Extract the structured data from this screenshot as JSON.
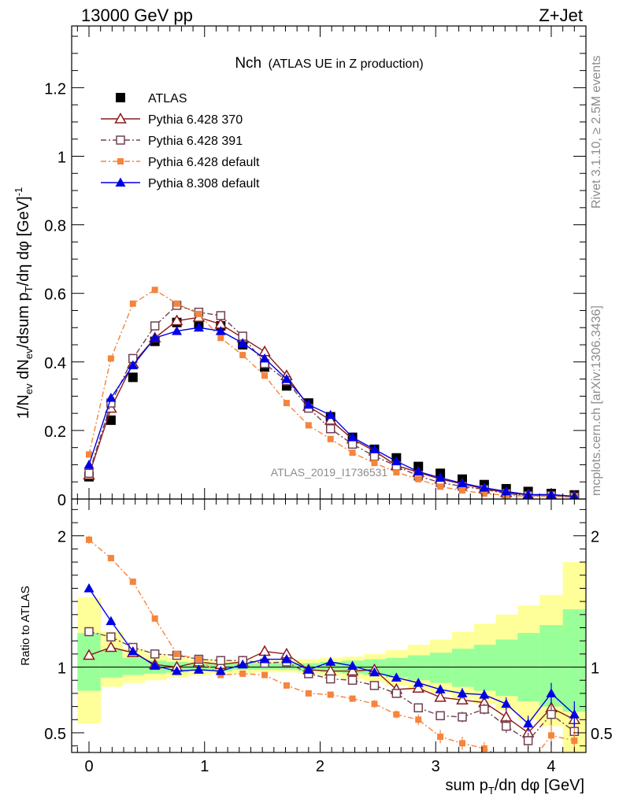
{
  "header": {
    "energy_label": "13000 GeV pp",
    "process_label": "Z+Jet"
  },
  "side_text": {
    "rivet": "Rivet 3.1.10, ≥ 2.5M events",
    "mcplots": "mcplots.cern.ch [arXiv:1306.3436]"
  },
  "chart_data": [
    {
      "type": "line",
      "panel": "main",
      "title_main": "Nch",
      "title_sub": "(ATLAS UE in Z production)",
      "ylabel": "1/N_ev dN_ev/dsum p_T/dη dφ [GeV]^-1",
      "watermark": "ATLAS_2019_I1736531",
      "legend_position": "top-left",
      "xlim": [
        -0.15,
        4.3
      ],
      "ylim": [
        0,
        1.38
      ],
      "y_ticks": [
        0,
        0.2,
        0.4,
        0.6,
        0.8,
        1,
        1.2
      ],
      "y_tick_labels": [
        "0",
        "0.2",
        "0.4",
        "0.6",
        "0.8",
        "1",
        "1.2"
      ],
      "x": [
        0.0,
        0.19,
        0.38,
        0.57,
        0.76,
        0.95,
        1.14,
        1.33,
        1.52,
        1.71,
        1.9,
        2.09,
        2.28,
        2.47,
        2.66,
        2.85,
        3.04,
        3.23,
        3.42,
        3.61,
        3.8,
        4.0,
        4.2
      ],
      "series": [
        {
          "name": "ATLAS",
          "color": "#000000",
          "style": "points",
          "marker": "square-filled",
          "values": [
            0.065,
            0.23,
            0.355,
            0.46,
            0.515,
            0.51,
            0.505,
            0.45,
            0.385,
            0.33,
            0.28,
            0.24,
            0.18,
            0.145,
            0.12,
            0.095,
            0.075,
            0.058,
            0.042,
            0.03,
            0.022,
            0.016,
            0.012
          ]
        },
        {
          "name": "Pythia 6.428 370",
          "color": "#8b1a1a",
          "style": "solid",
          "marker": "triangle-open",
          "values": [
            0.07,
            0.265,
            0.395,
            0.47,
            0.52,
            0.53,
            0.51,
            0.47,
            0.43,
            0.36,
            0.27,
            0.23,
            0.175,
            0.14,
            0.098,
            0.078,
            0.058,
            0.044,
            0.03,
            0.019,
            0.012,
            0.011,
            0.008
          ]
        },
        {
          "name": "Pythia 6.428 391",
          "color": "#704050",
          "style": "dashdot",
          "marker": "square-open",
          "values": [
            0.075,
            0.28,
            0.41,
            0.505,
            0.565,
            0.545,
            0.535,
            0.475,
            0.395,
            0.345,
            0.265,
            0.205,
            0.16,
            0.125,
            0.097,
            0.067,
            0.048,
            0.037,
            0.028,
            0.016,
            0.01,
            0.01,
            0.006
          ]
        },
        {
          "name": "Pythia 6.428 default",
          "color": "#f5843c",
          "style": "dashdot",
          "marker": "square-filled-small",
          "values": [
            0.13,
            0.41,
            0.57,
            0.61,
            0.57,
            0.54,
            0.47,
            0.42,
            0.36,
            0.28,
            0.215,
            0.175,
            0.135,
            0.105,
            0.078,
            0.058,
            0.036,
            0.025,
            0.016,
            0.011,
            0.008,
            0.008,
            0.005
          ]
        },
        {
          "name": "Pythia 8.308 default",
          "color": "#0000e6",
          "style": "solid",
          "marker": "triangle-filled",
          "values": [
            0.1,
            0.295,
            0.39,
            0.47,
            0.49,
            0.5,
            0.49,
            0.455,
            0.41,
            0.35,
            0.275,
            0.245,
            0.18,
            0.145,
            0.11,
            0.08,
            0.062,
            0.046,
            0.033,
            0.022,
            0.013,
            0.013,
            0.008
          ]
        }
      ]
    },
    {
      "type": "line",
      "panel": "ratio",
      "ylabel": "Ratio to ATLAS",
      "xlabel": "sum p_T/dη dφ [GeV]",
      "xlim": [
        -0.15,
        4.3
      ],
      "ylim": [
        0.35,
        2.28
      ],
      "y_ticks": [
        0.5,
        1,
        2
      ],
      "y_tick_labels": [
        "0.5",
        "1",
        "2"
      ],
      "x_ticks": [
        0,
        1,
        2,
        3,
        4
      ],
      "x_tick_labels": [
        "0",
        "1",
        "2",
        "3",
        "4"
      ],
      "reference": 1,
      "band_edges": [
        -0.1,
        0.1,
        0.29,
        0.48,
        0.67,
        0.86,
        1.05,
        1.24,
        1.43,
        1.62,
        1.81,
        2.0,
        2.19,
        2.38,
        2.57,
        2.76,
        2.95,
        3.14,
        3.33,
        3.52,
        3.71,
        3.9,
        4.1,
        4.3
      ],
      "band_yellow_low": [
        0.57,
        0.85,
        0.88,
        0.9,
        0.92,
        0.94,
        0.95,
        0.95,
        0.96,
        0.96,
        0.95,
        0.93,
        0.91,
        0.89,
        0.86,
        0.83,
        0.8,
        0.76,
        0.72,
        0.67,
        0.6,
        0.55,
        0.35
      ],
      "band_yellow_high": [
        1.53,
        1.27,
        1.14,
        1.1,
        1.07,
        1.06,
        1.05,
        1.05,
        1.05,
        1.05,
        1.06,
        1.07,
        1.08,
        1.1,
        1.13,
        1.17,
        1.21,
        1.27,
        1.33,
        1.4,
        1.47,
        1.55,
        1.8
      ],
      "band_green_low": [
        0.82,
        0.92,
        0.94,
        0.95,
        0.96,
        0.97,
        0.97,
        0.98,
        0.98,
        0.98,
        0.97,
        0.96,
        0.95,
        0.94,
        0.92,
        0.9,
        0.88,
        0.85,
        0.82,
        0.78,
        0.74,
        0.7,
        0.66
      ],
      "band_green_high": [
        1.26,
        1.13,
        1.07,
        1.05,
        1.04,
        1.03,
        1.03,
        1.03,
        1.03,
        1.03,
        1.03,
        1.04,
        1.05,
        1.06,
        1.07,
        1.09,
        1.11,
        1.14,
        1.17,
        1.21,
        1.26,
        1.32,
        1.44
      ],
      "band_colors": {
        "total": "#ffff99",
        "stat": "#99ff99"
      },
      "x": [
        0.0,
        0.19,
        0.38,
        0.57,
        0.76,
        0.95,
        1.14,
        1.33,
        1.52,
        1.71,
        1.9,
        2.09,
        2.28,
        2.47,
        2.66,
        2.85,
        3.04,
        3.23,
        3.42,
        3.61,
        3.8,
        4.0,
        4.2
      ],
      "series": [
        {
          "name": "Pythia 6.428 370",
          "color": "#8b1a1a",
          "style": "solid",
          "marker": "triangle-open",
          "values": [
            1.09,
            1.15,
            1.11,
            1.02,
            1.0,
            1.04,
            1.02,
            1.04,
            1.12,
            1.1,
            0.98,
            0.97,
            0.97,
            0.98,
            0.83,
            0.84,
            0.77,
            0.75,
            0.73,
            0.62,
            0.5,
            0.69,
            0.6
          ],
          "errors": [
            0.02,
            0.02,
            0.02,
            0.02,
            0.02,
            0.02,
            0.02,
            0.02,
            0.02,
            0.02,
            0.02,
            0.02,
            0.02,
            0.02,
            0.03,
            0.03,
            0.03,
            0.03,
            0.04,
            0.05,
            0.06,
            0.08,
            0.1
          ]
        },
        {
          "name": "Pythia 6.428 391",
          "color": "#704050",
          "style": "dashdot",
          "marker": "square-open",
          "values": [
            1.27,
            1.23,
            1.15,
            1.1,
            1.09,
            1.06,
            1.05,
            1.05,
            1.03,
            1.04,
            0.95,
            0.91,
            0.9,
            0.86,
            0.8,
            0.69,
            0.63,
            0.62,
            0.68,
            0.55,
            0.44,
            0.64,
            0.51
          ],
          "errors": [
            0.03,
            0.02,
            0.02,
            0.02,
            0.02,
            0.02,
            0.02,
            0.02,
            0.02,
            0.02,
            0.02,
            0.02,
            0.02,
            0.02,
            0.03,
            0.03,
            0.03,
            0.04,
            0.04,
            0.05,
            0.06,
            0.08,
            0.1
          ]
        },
        {
          "name": "Pythia 6.428 default",
          "color": "#f5843c",
          "style": "dashdot",
          "marker": "square-filled-small",
          "values": [
            1.97,
            1.83,
            1.65,
            1.37,
            1.1,
            1.06,
            0.94,
            0.95,
            0.94,
            0.86,
            0.8,
            0.79,
            0.76,
            0.72,
            0.64,
            0.6,
            0.47,
            0.42,
            0.38,
            0.3,
            0.25,
            0.48,
            0.44
          ],
          "errors": [
            0.03,
            0.02,
            0.02,
            0.02,
            0.02,
            0.02,
            0.02,
            0.02,
            0.02,
            0.02,
            0.02,
            0.02,
            0.02,
            0.03,
            0.03,
            0.04,
            0.05,
            0.05,
            0.05,
            0.05,
            0.06,
            0.08,
            0.1
          ]
        },
        {
          "name": "Pythia 8.308 default",
          "color": "#0000e6",
          "style": "solid",
          "marker": "triangle-filled",
          "values": [
            1.6,
            1.35,
            1.12,
            1.01,
            0.97,
            0.98,
            0.97,
            1.02,
            1.06,
            1.06,
            0.98,
            1.04,
            1.01,
            0.96,
            0.92,
            0.88,
            0.83,
            0.8,
            0.79,
            0.72,
            0.57,
            0.8,
            0.64
          ],
          "errors": [
            0.03,
            0.02,
            0.02,
            0.02,
            0.02,
            0.02,
            0.02,
            0.02,
            0.02,
            0.02,
            0.02,
            0.02,
            0.02,
            0.02,
            0.03,
            0.03,
            0.03,
            0.04,
            0.04,
            0.05,
            0.06,
            0.08,
            0.1
          ]
        }
      ]
    }
  ]
}
